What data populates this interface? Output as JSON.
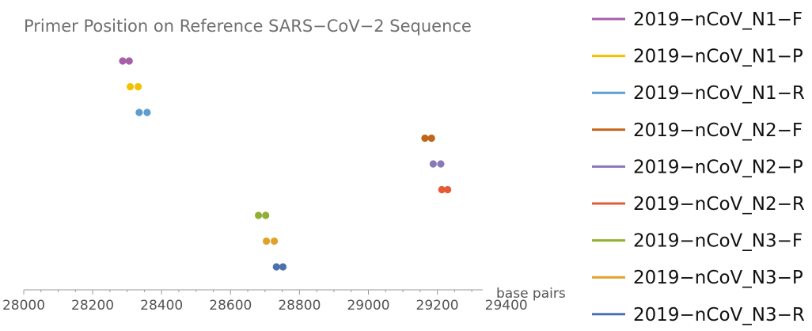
{
  "chart_data": {
    "type": "scatter",
    "title": "Primer Position on Reference SARS−CoV−2 Sequence",
    "xlabel": "base pairs",
    "ylabel": "",
    "xlim": [
      28000,
      29500
    ],
    "xticks": [
      28000,
      28200,
      28400,
      28600,
      28800,
      29000,
      29200,
      29400
    ],
    "tick_labels": [
      "28000",
      "28200",
      "28400",
      "28600",
      "28800",
      "29000",
      "29200",
      "29400"
    ],
    "legend_position": "right",
    "grid": false,
    "series": [
      {
        "name": "2019−nCoV_N1−F",
        "color": "#a65fa8",
        "x": [
          28287,
          28306
        ]
      },
      {
        "name": "2019−nCoV_N1−P",
        "color": "#f2c200",
        "x": [
          28309,
          28332
        ]
      },
      {
        "name": "2019−nCoV_N1−R",
        "color": "#5e9dcf",
        "x": [
          28335,
          28358
        ]
      },
      {
        "name": "2019−nCoV_N2−F",
        "color": "#c0661b",
        "x": [
          29164,
          29183
        ]
      },
      {
        "name": "2019−nCoV_N2−P",
        "color": "#8a79b9",
        "x": [
          29188,
          29210
        ]
      },
      {
        "name": "2019−nCoV_N2−R",
        "color": "#e65a38",
        "x": [
          29213,
          29230
        ]
      },
      {
        "name": "2019−nCoV_N3−F",
        "color": "#8fb032",
        "x": [
          28681,
          28702
        ]
      },
      {
        "name": "2019−nCoV_N3−P",
        "color": "#e2a229",
        "x": [
          28704,
          28727
        ]
      },
      {
        "name": "2019−nCoV_N3−R",
        "color": "#4a72ad",
        "x": [
          28733,
          28752
        ]
      }
    ]
  }
}
